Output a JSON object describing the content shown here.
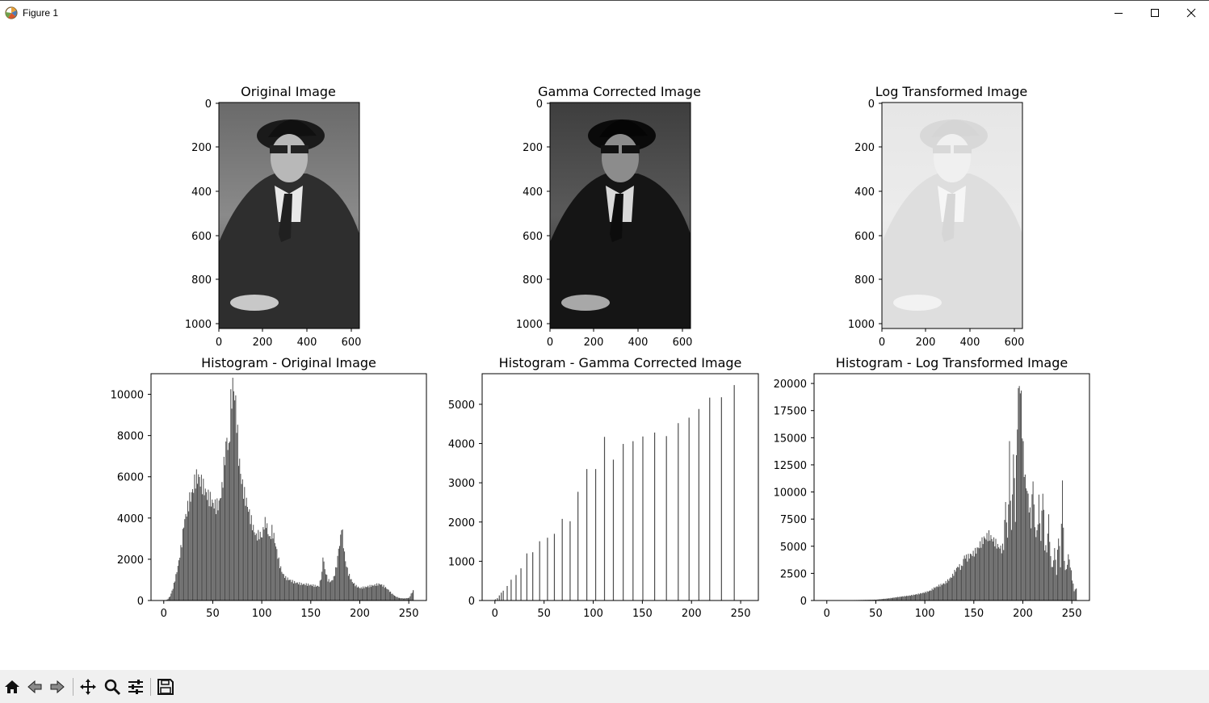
{
  "window": {
    "title": "Figure 1"
  },
  "images": [
    {
      "title": "Original Image",
      "tone": "original",
      "yticks": [
        "0",
        "200",
        "400",
        "600",
        "800",
        "1000"
      ],
      "xticks": [
        "0",
        "200",
        "400",
        "600"
      ]
    },
    {
      "title": "Gamma Corrected Image",
      "tone": "gamma",
      "yticks": [
        "0",
        "200",
        "400",
        "600",
        "800",
        "1000"
      ],
      "xticks": [
        "0",
        "200",
        "400",
        "600"
      ]
    },
    {
      "title": "Log Transformed Image",
      "tone": "log",
      "yticks": [
        "0",
        "200",
        "400",
        "600",
        "800",
        "1000"
      ],
      "xticks": [
        "0",
        "200",
        "400",
        "600"
      ]
    }
  ],
  "chart_data": [
    {
      "type": "bar",
      "title": "Histogram - Original Image",
      "xlim": [
        -13,
        268
      ],
      "ylim": [
        0,
        11000
      ],
      "xticks": [
        0,
        50,
        100,
        150,
        200,
        250
      ],
      "yticks": [
        0,
        2000,
        4000,
        6000,
        8000,
        10000
      ],
      "bar_color": "#4d4d4d",
      "points": [
        [
          0,
          0
        ],
        [
          3,
          40
        ],
        [
          6,
          200
        ],
        [
          9,
          600
        ],
        [
          12,
          1200
        ],
        [
          15,
          1900
        ],
        [
          18,
          2800
        ],
        [
          20,
          3700
        ],
        [
          23,
          4300
        ],
        [
          26,
          4900
        ],
        [
          29,
          5300
        ],
        [
          32,
          5900
        ],
        [
          35,
          6000
        ],
        [
          38,
          5700
        ],
        [
          41,
          5400
        ],
        [
          44,
          5100
        ],
        [
          47,
          4900
        ],
        [
          50,
          4700
        ],
        [
          53,
          4550
        ],
        [
          56,
          4700
        ],
        [
          59,
          5400
        ],
        [
          62,
          7000
        ],
        [
          64,
          7900
        ],
        [
          66,
          7200
        ],
        [
          68,
          9500
        ],
        [
          70,
          10400
        ],
        [
          72,
          10000
        ],
        [
          74,
          8800
        ],
        [
          76,
          7000
        ],
        [
          79,
          5800
        ],
        [
          82,
          5100
        ],
        [
          85,
          4600
        ],
        [
          88,
          4000
        ],
        [
          91,
          3500
        ],
        [
          94,
          3100
        ],
        [
          97,
          3200
        ],
        [
          100,
          3100
        ],
        [
          102,
          3700
        ],
        [
          104,
          3800
        ],
        [
          106,
          3300
        ],
        [
          108,
          3000
        ],
        [
          110,
          3400
        ],
        [
          112,
          3100
        ],
        [
          115,
          2400
        ],
        [
          118,
          1700
        ],
        [
          121,
          1300
        ],
        [
          124,
          1100
        ],
        [
          128,
          1000
        ],
        [
          132,
          900
        ],
        [
          136,
          850
        ],
        [
          140,
          800
        ],
        [
          145,
          780
        ],
        [
          150,
          750
        ],
        [
          155,
          700
        ],
        [
          158,
          700
        ],
        [
          161,
          1300
        ],
        [
          162,
          2200
        ],
        [
          164,
          1500
        ],
        [
          167,
          1000
        ],
        [
          170,
          900
        ],
        [
          173,
          1100
        ],
        [
          176,
          1700
        ],
        [
          178,
          2500
        ],
        [
          180,
          3000
        ],
        [
          181,
          3700
        ],
        [
          183,
          2700
        ],
        [
          185,
          1900
        ],
        [
          188,
          1300
        ],
        [
          192,
          900
        ],
        [
          196,
          700
        ],
        [
          200,
          600
        ],
        [
          205,
          650
        ],
        [
          210,
          700
        ],
        [
          215,
          750
        ],
        [
          220,
          800
        ],
        [
          224,
          700
        ],
        [
          228,
          550
        ],
        [
          232,
          350
        ],
        [
          236,
          200
        ],
        [
          240,
          120
        ],
        [
          245,
          100
        ],
        [
          250,
          130
        ],
        [
          254,
          500
        ]
      ]
    },
    {
      "type": "bar",
      "title": "Histogram - Gamma Corrected Image",
      "xlim": [
        -13,
        268
      ],
      "ylim": [
        0,
        5780
      ],
      "xticks": [
        0,
        50,
        100,
        150,
        200,
        250
      ],
      "yticks": [
        0,
        1000,
        2000,
        3000,
        4000,
        5000
      ],
      "bar_color": "#4d4d4d",
      "points": [
        [
          0,
          30
        ],
        [
          2,
          60
        ],
        [
          4,
          130
        ],
        [
          6,
          200
        ],
        [
          8,
          250
        ],
        [
          12,
          370
        ],
        [
          16,
          530
        ],
        [
          21,
          650
        ],
        [
          26,
          820
        ],
        [
          32,
          1200
        ],
        [
          38,
          1230
        ],
        [
          45,
          1510
        ],
        [
          53,
          1600
        ],
        [
          60,
          1700
        ],
        [
          68,
          2080
        ],
        [
          76,
          2020
        ],
        [
          84,
          2770
        ],
        [
          93,
          3350
        ],
        [
          102,
          3350
        ],
        [
          111,
          4170
        ],
        [
          120,
          3590
        ],
        [
          130,
          3990
        ],
        [
          140,
          4060
        ],
        [
          150,
          4180
        ],
        [
          162,
          4280
        ],
        [
          174,
          4190
        ],
        [
          186,
          4520
        ],
        [
          197,
          4660
        ],
        [
          207,
          4880
        ],
        [
          218,
          5170
        ],
        [
          230,
          5180
        ],
        [
          243,
          5490
        ]
      ]
    },
    {
      "type": "bar",
      "title": "Histogram - Log Transformed Image",
      "xlim": [
        -13,
        268
      ],
      "ylim": [
        0,
        20900
      ],
      "xticks": [
        0,
        50,
        100,
        150,
        200,
        250
      ],
      "yticks": [
        0,
        2500,
        5000,
        7500,
        10000,
        12500,
        15000,
        17500,
        20000
      ],
      "bar_color": "#4d4d4d",
      "points": [
        [
          0,
          10
        ],
        [
          30,
          40
        ],
        [
          50,
          80
        ],
        [
          63,
          200
        ],
        [
          75,
          350
        ],
        [
          84,
          450
        ],
        [
          93,
          600
        ],
        [
          100,
          750
        ],
        [
          105,
          900
        ],
        [
          110,
          1200
        ],
        [
          115,
          1400
        ],
        [
          120,
          1600
        ],
        [
          124,
          1900
        ],
        [
          128,
          2300
        ],
        [
          131,
          2800
        ],
        [
          134,
          3200
        ],
        [
          137,
          3000
        ],
        [
          140,
          4100
        ],
        [
          143,
          3900
        ],
        [
          146,
          4200
        ],
        [
          149,
          4300
        ],
        [
          152,
          4600
        ],
        [
          155,
          5000
        ],
        [
          158,
          5400
        ],
        [
          160,
          5700
        ],
        [
          162,
          5800
        ],
        [
          165,
          6000
        ],
        [
          168,
          5700
        ],
        [
          171,
          5400
        ],
        [
          174,
          5000
        ],
        [
          176,
          4900
        ],
        [
          178,
          4700
        ],
        [
          180,
          5000
        ],
        [
          182,
          9200
        ],
        [
          184,
          5500
        ],
        [
          186,
          13600
        ],
        [
          188,
          6200
        ],
        [
          190,
          13700
        ],
        [
          192,
          7800
        ],
        [
          194,
          17000
        ],
        [
          196,
          20200
        ],
        [
          198,
          18500
        ],
        [
          200,
          13600
        ],
        [
          202,
          11000
        ],
        [
          204,
          10200
        ],
        [
          206,
          8700
        ],
        [
          208,
          7200
        ],
        [
          210,
          11300
        ],
        [
          212,
          6500
        ],
        [
          214,
          6000
        ],
        [
          216,
          9200
        ],
        [
          218,
          5500
        ],
        [
          220,
          10500
        ],
        [
          222,
          5000
        ],
        [
          224,
          4600
        ],
        [
          226,
          7700
        ],
        [
          228,
          3800
        ],
        [
          230,
          2900
        ],
        [
          232,
          4800
        ],
        [
          234,
          2500
        ],
        [
          236,
          6200
        ],
        [
          238,
          3200
        ],
        [
          240,
          10800
        ],
        [
          242,
          3400
        ],
        [
          244,
          2700
        ],
        [
          246,
          4200
        ],
        [
          248,
          3200
        ],
        [
          250,
          2000
        ],
        [
          252,
          900
        ],
        [
          254,
          1100
        ]
      ]
    }
  ]
}
